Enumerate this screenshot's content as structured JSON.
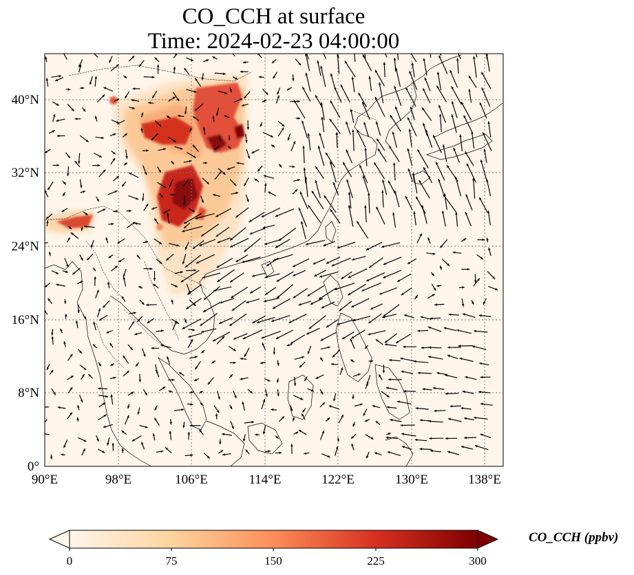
{
  "title": {
    "line1": "CO_CCH at surface",
    "line2": "Time: 2024-02-23 04:00:00"
  },
  "map": {
    "lon_range": [
      90,
      140
    ],
    "lat_range": [
      0,
      45
    ],
    "lon_ticks": [
      "90°E",
      "98°E",
      "106°E",
      "114°E",
      "122°E",
      "130°E",
      "138°E"
    ],
    "lat_ticks": [
      "0°",
      "8°N",
      "16°N",
      "24°N",
      "32°N",
      "40°N"
    ],
    "gridlines": "dotted",
    "background_color": "#fff5eb",
    "overlays": [
      "coastlines",
      "country-borders",
      "wind-vectors"
    ]
  },
  "colorbar": {
    "label": "CO_CCH (ppbv)",
    "ticks": [
      "0",
      "75",
      "150",
      "225",
      "300"
    ],
    "min": 0,
    "max": 300,
    "colormap": "OrRd",
    "colors": [
      "#fff5eb",
      "#fdd49e",
      "#fc8d59",
      "#d7301f",
      "#7f0000"
    ],
    "extend": "both"
  }
}
